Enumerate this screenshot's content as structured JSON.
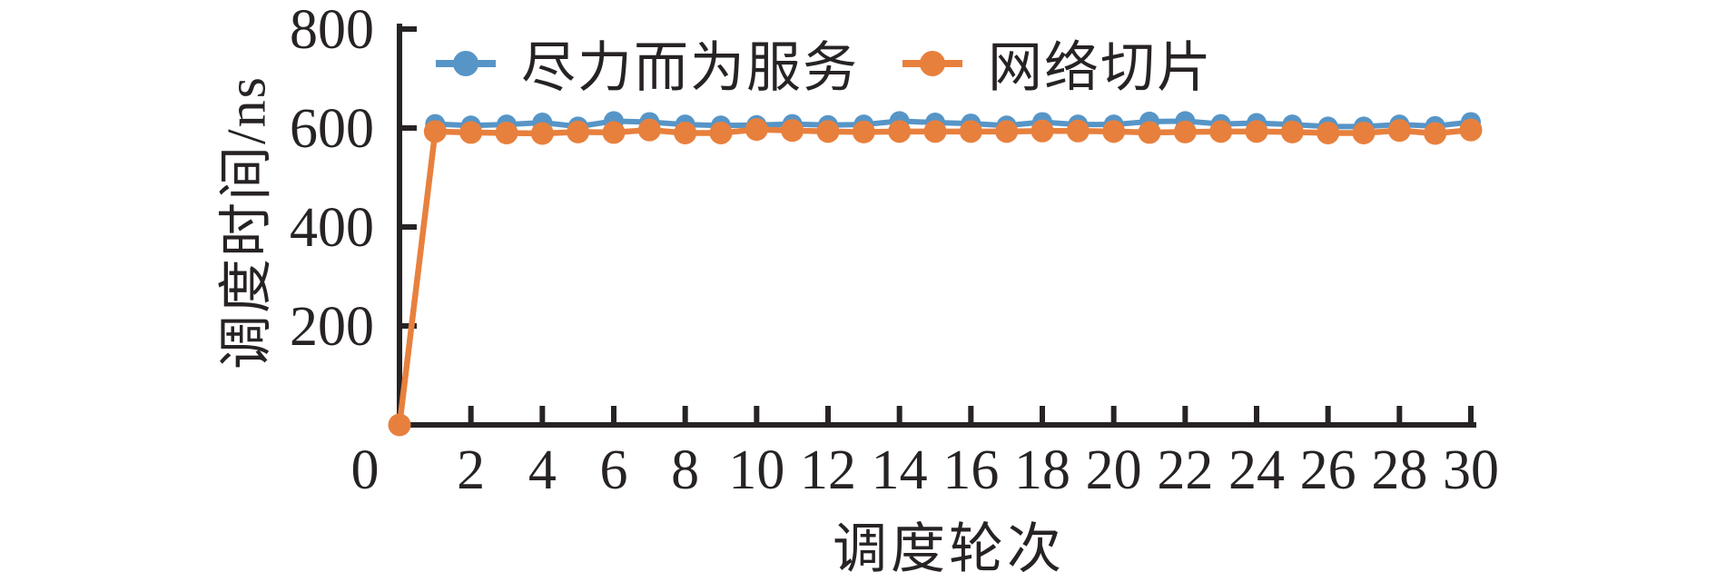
{
  "figure": {
    "background": "#ffffff",
    "axis_color": "#272324",
    "text_color": "#272324"
  },
  "legend": {
    "position": "upper-left-inside",
    "items": [
      {
        "label": "尽力而为服务",
        "color": "#5795c7",
        "marker": "circle-on-line"
      },
      {
        "label": "网络切片",
        "color": "#e8803d",
        "marker": "circle-on-line"
      }
    ]
  },
  "chart_data": {
    "type": "line",
    "title": "",
    "xlabel": "调度轮次",
    "ylabel": "调度时间/ns",
    "xlim": [
      0,
      30
    ],
    "ylim": [
      0,
      800
    ],
    "grid": false,
    "legend_position": "upper-left-inside",
    "x_tick_labels": [
      "0",
      "2",
      "4",
      "6",
      "8",
      "10",
      "12",
      "14",
      "16",
      "18",
      "20",
      "22",
      "24",
      "26",
      "28",
      "30"
    ],
    "x_tick_values": [
      0,
      2,
      4,
      6,
      8,
      10,
      12,
      14,
      16,
      18,
      20,
      22,
      24,
      26,
      28,
      30
    ],
    "y_tick_labels": [
      "200",
      "400",
      "600",
      "800"
    ],
    "y_tick_values": [
      200,
      400,
      600,
      800
    ],
    "origin_label": "0",
    "series": [
      {
        "name": "尽力而为服务",
        "color": "#5795c7",
        "marker": "circle",
        "x": [
          1,
          2,
          3,
          4,
          5,
          6,
          7,
          8,
          9,
          10,
          11,
          12,
          13,
          14,
          15,
          16,
          17,
          18,
          19,
          20,
          21,
          22,
          23,
          24,
          25,
          26,
          27,
          28,
          29,
          30
        ],
        "values": [
          608,
          605,
          607,
          611,
          603,
          614,
          612,
          607,
          605,
          606,
          608,
          606,
          607,
          614,
          611,
          609,
          605,
          612,
          607,
          607,
          613,
          614,
          608,
          610,
          607,
          603,
          603,
          607,
          604,
          612
        ]
      },
      {
        "name": "网络切片",
        "color": "#e8803d",
        "marker": "circle",
        "x": [
          0,
          1,
          2,
          3,
          4,
          5,
          6,
          7,
          8,
          9,
          10,
          11,
          12,
          13,
          14,
          15,
          16,
          17,
          18,
          19,
          20,
          21,
          22,
          23,
          24,
          25,
          26,
          27,
          28,
          29,
          30
        ],
        "values": [
          0,
          593,
          591,
          590,
          589,
          592,
          591,
          596,
          590,
          590,
          597,
          595,
          593,
          592,
          593,
          593,
          593,
          593,
          594,
          594,
          593,
          591,
          592,
          593,
          593,
          592,
          590,
          590,
          595,
          589,
          596
        ]
      }
    ]
  }
}
